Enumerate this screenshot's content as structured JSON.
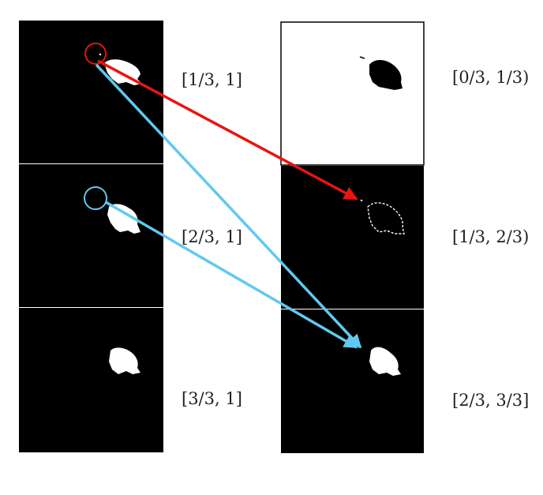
{
  "colors": {
    "background": "#ffffff",
    "panel_dark": "#000000",
    "panel_light": "#ffffff",
    "blob": "#ffffff",
    "blob_dark": "#000000",
    "arrow_red": "#e8140f",
    "arrow_cyan": "#62c9ee"
  },
  "left_column": {
    "labels": [
      "[1/3, 1]",
      "[2/3, 1]",
      "[3/3, 1]"
    ]
  },
  "right_column": {
    "labels": [
      "[0/3, 1/3)",
      "[1/3, 2/3)",
      "[2/3, 3/3]"
    ]
  },
  "arrows": [
    {
      "name": "red-arrow",
      "color_key": "arrow_red"
    },
    {
      "name": "cyan-arrow-1",
      "color_key": "arrow_cyan"
    },
    {
      "name": "cyan-arrow-2",
      "color_key": "arrow_cyan"
    }
  ]
}
